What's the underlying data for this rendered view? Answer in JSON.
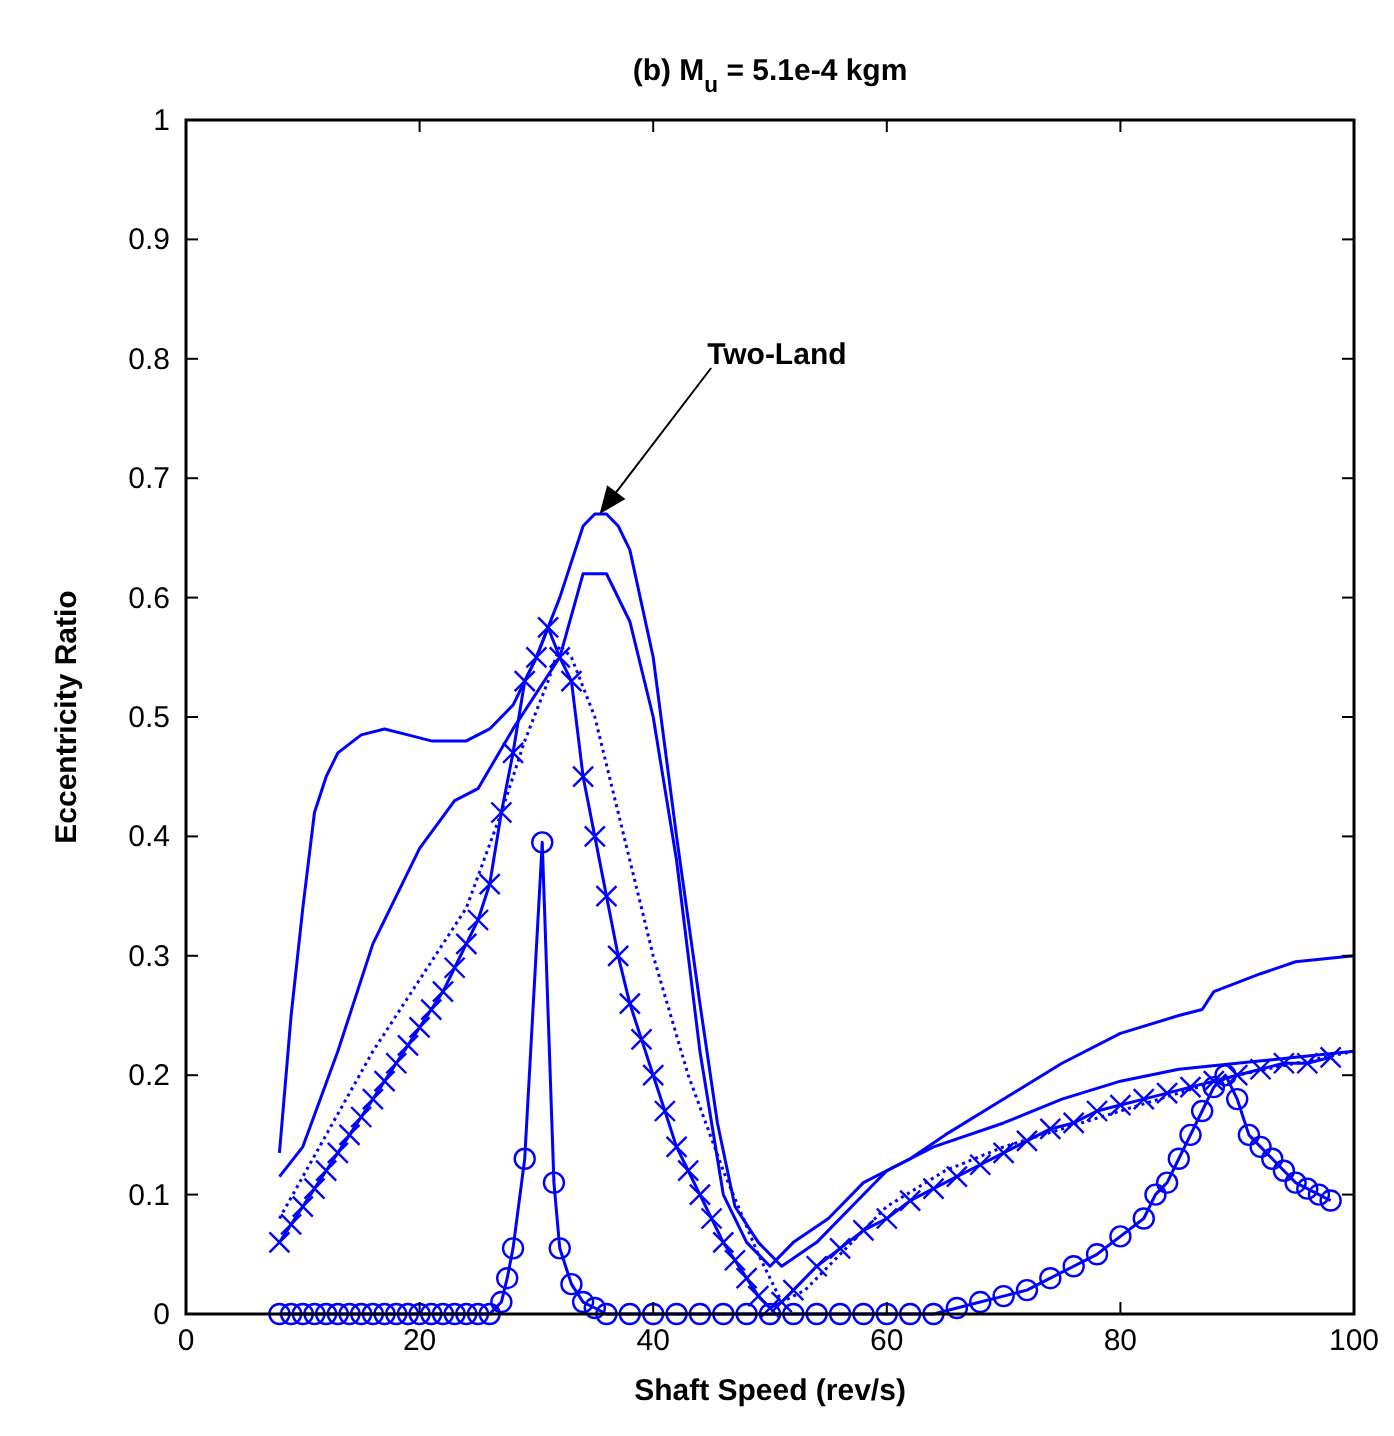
{
  "chart_data": {
    "type": "line",
    "title": "(b) M$_{u}$ = 5.1e-4 kgm",
    "xlabel": "Shaft Speed (rev/s)",
    "ylabel": "Eccentricity Ratio",
    "xlim": [
      0,
      100
    ],
    "ylim": [
      0,
      1
    ],
    "xticks": [
      0,
      20,
      40,
      60,
      80,
      100
    ],
    "yticks": [
      0,
      0.1,
      0.2,
      0.3,
      0.4,
      0.5,
      0.6,
      0.7,
      0.8,
      0.9,
      1
    ],
    "grid": false,
    "annotations": [
      "Two-Land"
    ],
    "series": [
      {
        "color": "#0000ff",
        "marker": "none",
        "line_style": "solid",
        "x": [
          8,
          9,
          10,
          11,
          12,
          13,
          15,
          17,
          19,
          21,
          24,
          26,
          28,
          30,
          32,
          34,
          35,
          36,
          37,
          38,
          40,
          42,
          44,
          45.5,
          47,
          49,
          51,
          54,
          57,
          60,
          64,
          70,
          75,
          80,
          85,
          90,
          95,
          100
        ],
        "values": [
          0.135,
          0.25,
          0.34,
          0.42,
          0.45,
          0.47,
          0.485,
          0.49,
          0.485,
          0.48,
          0.48,
          0.49,
          0.51,
          0.55,
          0.6,
          0.66,
          0.67,
          0.67,
          0.66,
          0.64,
          0.55,
          0.4,
          0.26,
          0.16,
          0.09,
          0.06,
          0.04,
          0.06,
          0.09,
          0.12,
          0.14,
          0.16,
          0.18,
          0.195,
          0.205,
          0.21,
          0.215,
          0.22
        ]
      },
      {
        "color": "#0000ff",
        "marker": "none",
        "line_style": "solid",
        "x": [
          8,
          10,
          13,
          16,
          20,
          23,
          25,
          28,
          32,
          34,
          36,
          38,
          40,
          42,
          44,
          46,
          48,
          50,
          52,
          55,
          58,
          62,
          65,
          70,
          75,
          80,
          85,
          87,
          88,
          92,
          95,
          100
        ],
        "values": [
          0.115,
          0.14,
          0.22,
          0.31,
          0.39,
          0.43,
          0.44,
          0.49,
          0.55,
          0.62,
          0.62,
          0.58,
          0.5,
          0.38,
          0.22,
          0.1,
          0.06,
          0.04,
          0.06,
          0.08,
          0.11,
          0.13,
          0.15,
          0.18,
          0.21,
          0.235,
          0.25,
          0.255,
          0.27,
          0.285,
          0.295,
          0.3
        ]
      },
      {
        "color": "#0000ff",
        "marker": "none",
        "line_style": "dotted",
        "x": [
          8,
          12,
          16,
          20,
          24,
          27,
          29,
          31,
          32,
          33,
          35,
          37,
          40,
          43,
          46,
          49,
          51,
          53,
          57,
          60,
          65,
          70,
          80,
          90,
          100
        ],
        "values": [
          0.08,
          0.15,
          0.22,
          0.28,
          0.34,
          0.42,
          0.48,
          0.53,
          0.56,
          0.55,
          0.5,
          0.42,
          0.3,
          0.2,
          0.12,
          0.05,
          0.01,
          0.02,
          0.06,
          0.09,
          0.12,
          0.14,
          0.17,
          0.2,
          0.22
        ]
      },
      {
        "color": "#0000ff",
        "marker": "cross",
        "line_style": "solid",
        "x": [
          8,
          9,
          10,
          11,
          12,
          13,
          14,
          15,
          16,
          17,
          18,
          19,
          20,
          21,
          22,
          23,
          24,
          25,
          26,
          27,
          28,
          29,
          30,
          31,
          32,
          33,
          34,
          35,
          36,
          37,
          38,
          39,
          40,
          41,
          42,
          43,
          44,
          45,
          46,
          47,
          48,
          49,
          50,
          51,
          52,
          54,
          56,
          58,
          60,
          62,
          64,
          66,
          68,
          70,
          72,
          74,
          76,
          78,
          80,
          82,
          84,
          86,
          88,
          90,
          92,
          94,
          96,
          98
        ],
        "values": [
          0.06,
          0.075,
          0.09,
          0.105,
          0.12,
          0.135,
          0.15,
          0.165,
          0.18,
          0.195,
          0.21,
          0.225,
          0.24,
          0.255,
          0.27,
          0.29,
          0.31,
          0.33,
          0.36,
          0.42,
          0.47,
          0.53,
          0.55,
          0.575,
          0.55,
          0.53,
          0.45,
          0.4,
          0.35,
          0.3,
          0.26,
          0.23,
          0.2,
          0.17,
          0.14,
          0.12,
          0.1,
          0.08,
          0.06,
          0.045,
          0.03,
          0.015,
          0.005,
          0.01,
          0.02,
          0.04,
          0.055,
          0.07,
          0.08,
          0.095,
          0.105,
          0.115,
          0.125,
          0.135,
          0.145,
          0.155,
          0.16,
          0.17,
          0.175,
          0.18,
          0.185,
          0.19,
          0.195,
          0.2,
          0.205,
          0.21,
          0.21,
          0.215
        ]
      },
      {
        "color": "#0000ff",
        "marker": "circle",
        "line_style": "solid",
        "x": [
          8,
          9,
          10,
          11,
          12,
          13,
          14,
          15,
          16,
          17,
          18,
          19,
          20,
          21,
          22,
          23,
          24,
          25,
          26,
          27,
          27.5,
          28,
          29,
          30.5,
          31.5,
          32,
          33,
          34,
          35,
          36,
          38,
          40,
          42,
          44,
          46,
          48,
          50,
          52,
          54,
          56,
          58,
          60,
          62,
          64,
          66,
          68,
          70,
          72,
          74,
          76,
          78,
          80,
          82,
          83,
          84,
          85,
          86,
          87,
          88,
          89,
          90,
          91,
          92,
          93,
          94,
          95,
          96,
          97,
          98
        ],
        "values": [
          0,
          0,
          0,
          0,
          0,
          0,
          0,
          0,
          0,
          0,
          0,
          0,
          0,
          0,
          0,
          0,
          0,
          0,
          0,
          0.01,
          0.03,
          0.055,
          0.13,
          0.395,
          0.11,
          0.055,
          0.025,
          0.01,
          0.005,
          0,
          0,
          0,
          0,
          0,
          0,
          0,
          0,
          0,
          0,
          0,
          0,
          0,
          0,
          0,
          0.005,
          0.01,
          0.015,
          0.02,
          0.03,
          0.04,
          0.05,
          0.065,
          0.08,
          0.1,
          0.11,
          0.13,
          0.15,
          0.17,
          0.19,
          0.2,
          0.18,
          0.15,
          0.14,
          0.13,
          0.12,
          0.11,
          0.105,
          0.1,
          0.095
        ]
      }
    ]
  }
}
